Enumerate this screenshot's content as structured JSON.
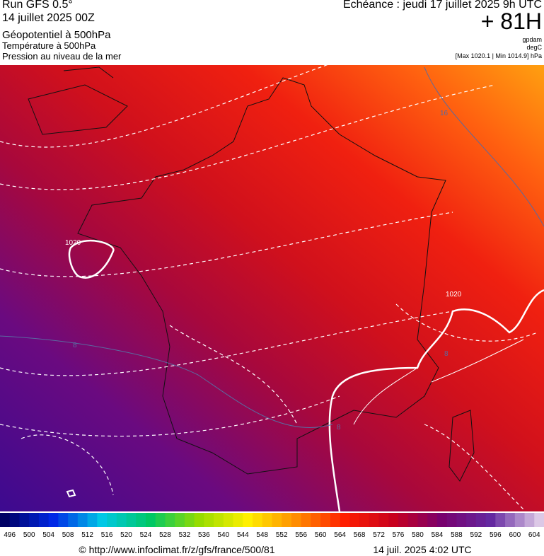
{
  "header": {
    "title": "Run GFS 0.5°",
    "run": "14 juillet 2025 00Z",
    "parameter": "Géopotentiel à 500hPa",
    "layer_temperature": "Température à 500hPa",
    "layer_pressure": "Pression au niveau de la mer",
    "echeance": "Echéance : jeudi 17 juillet 2025 9h UTC",
    "lead": "+ 81H",
    "unit_geopotential": "gpdam",
    "unit_temperature": "degC",
    "pressure_range": "[Max 1020.1 | Min 1014.9] hPa"
  },
  "map": {
    "contour_labels": [
      "1020",
      "1020",
      "16",
      "8",
      "8",
      "8"
    ]
  },
  "colorbar": {
    "labels": [
      "496",
      "500",
      "504",
      "508",
      "512",
      "516",
      "520",
      "524",
      "528",
      "532",
      "536",
      "540",
      "544",
      "548",
      "552",
      "556",
      "560",
      "564",
      "568",
      "572",
      "576",
      "580",
      "584",
      "588",
      "592",
      "596",
      "600",
      "604"
    ]
  },
  "footer": {
    "source": "© http://www.infoclimat.fr/z/gfs/france/500/81",
    "timestamp": "14 juil. 2025  4:02 UTC"
  }
}
